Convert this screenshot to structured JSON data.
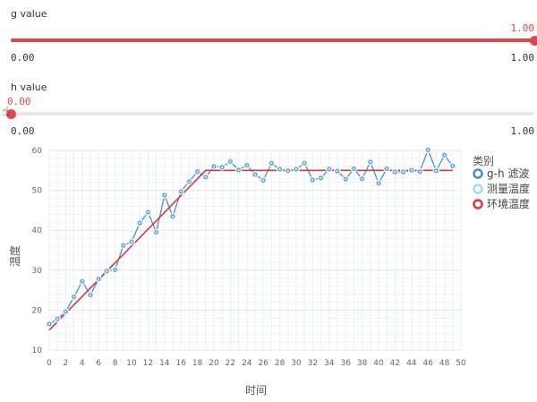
{
  "sliders": [
    {
      "label": "g value",
      "value": "1.00",
      "min": "0.00",
      "max": "1.00",
      "fraction": 1.0
    },
    {
      "label": "h value",
      "value": "0.00",
      "min": "0.00",
      "max": "1.00",
      "fraction": 0.0
    }
  ],
  "chart_data": {
    "type": "line",
    "xlabel": "时间",
    "ylabel": "温度",
    "xlim": [
      0,
      50
    ],
    "ylim": [
      10,
      60
    ],
    "x_ticks": [
      0,
      2,
      4,
      6,
      8,
      10,
      12,
      14,
      16,
      18,
      20,
      22,
      24,
      26,
      28,
      30,
      32,
      34,
      36,
      38,
      40,
      42,
      44,
      46,
      48,
      50
    ],
    "y_ticks": [
      10,
      20,
      30,
      40,
      50,
      60
    ],
    "grid": true,
    "legend_title": "类别",
    "legend_position": "right",
    "series": [
      {
        "name": "g-h 滤波",
        "color": "#4c8bd4",
        "x": [
          0,
          1,
          2,
          3,
          4,
          5,
          6,
          7,
          8,
          9,
          10,
          11,
          12,
          13,
          14,
          15,
          16,
          17,
          18,
          19,
          20,
          21,
          22,
          23,
          24,
          25,
          26,
          27,
          28,
          29,
          30,
          31,
          32,
          33,
          34,
          35,
          36,
          37,
          38,
          39,
          40,
          41,
          42,
          43,
          44,
          45,
          46,
          47,
          48,
          49
        ],
        "y": [
          16.5,
          17.8,
          19.6,
          23.3,
          27.2,
          23.8,
          27.8,
          29.8,
          30.1,
          36.2,
          37.1,
          41.8,
          44.5,
          39.5,
          48.8,
          43.5,
          49.7,
          52.2,
          54.7,
          53.3,
          56,
          55.8,
          57.2,
          55.1,
          56.3,
          54,
          52.5,
          56.8,
          55.3,
          54.9,
          55.3,
          56.8,
          52.6,
          53.1,
          55.3,
          54.8,
          52.8,
          55.4,
          52.9,
          57.1,
          51.8,
          55.4,
          54.6,
          54.6,
          55,
          54.7,
          60.1,
          54.9,
          58.8,
          56.1
        ]
      },
      {
        "name": "测量温度",
        "color": "#a3dcf0",
        "x": [
          0,
          1,
          2,
          3,
          4,
          5,
          6,
          7,
          8,
          9,
          10,
          11,
          12,
          13,
          14,
          15,
          16,
          17,
          18,
          19,
          20,
          21,
          22,
          23,
          24,
          25,
          26,
          27,
          28,
          29,
          30,
          31,
          32,
          33,
          34,
          35,
          36,
          37,
          38,
          39,
          40,
          41,
          42,
          43,
          44,
          45,
          46,
          47,
          48,
          49
        ],
        "y": [
          16.5,
          17.8,
          19.6,
          23.3,
          27.2,
          23.8,
          27.8,
          29.8,
          30.1,
          36.2,
          37.1,
          41.8,
          44.5,
          39.5,
          48.8,
          43.5,
          49.7,
          52.2,
          54.7,
          53.3,
          56,
          55.8,
          57.2,
          55.1,
          56.3,
          54,
          52.5,
          56.8,
          55.3,
          54.9,
          55.3,
          56.8,
          52.6,
          53.1,
          55.3,
          54.8,
          52.8,
          55.4,
          52.9,
          57.1,
          51.8,
          55.4,
          54.6,
          54.6,
          55,
          54.7,
          60.1,
          54.9,
          58.8,
          56.1
        ]
      },
      {
        "name": "环境温度",
        "color": "#d83a3a",
        "x": [
          0,
          19,
          49
        ],
        "y": [
          15,
          55,
          55
        ]
      }
    ]
  }
}
